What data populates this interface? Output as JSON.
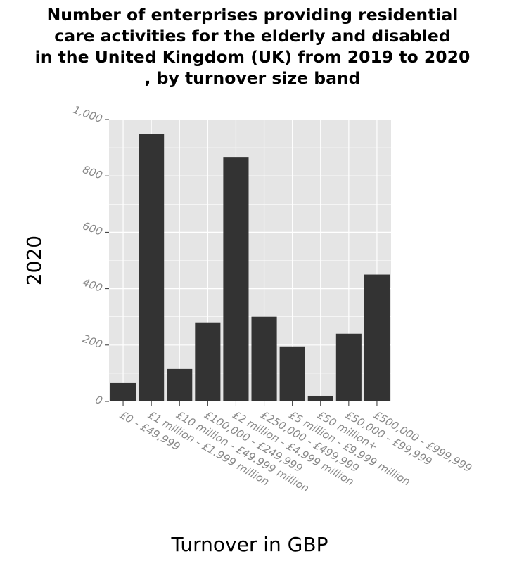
{
  "chart_data": {
    "type": "bar",
    "title_lines": [
      "Number of enterprises providing residential",
      "care activities for the elderly and disabled",
      "in the United Kingdom (UK) from 2019 to 2020",
      ", by turnover size band"
    ],
    "xlabel": "Turnover in GBP",
    "ylabel": "2020",
    "categories": [
      "£0 - £49,999",
      "£1 million - £1.999 million",
      "£10 million - £49.999 million",
      "£100,000 - £249,999",
      "£2 million - £4.999 million",
      "£250,000 - £499,999",
      "£5 million - £9.999 million",
      "£50 million+",
      "£50,000 - £99,999",
      "£500,000 - £999,999"
    ],
    "values": [
      65,
      950,
      115,
      280,
      865,
      300,
      195,
      20,
      240,
      450
    ],
    "ylim": [
      0,
      1000
    ],
    "yticks": [
      0,
      200,
      400,
      600,
      800,
      1000
    ],
    "ytick_labels": [
      "0",
      "200",
      "400",
      "600",
      "800",
      "1,000"
    ],
    "grid": true,
    "colors": {
      "bar": "#333333",
      "panel": "#e5e5e5",
      "grid": "#ffffff",
      "tick": "#888888"
    }
  }
}
